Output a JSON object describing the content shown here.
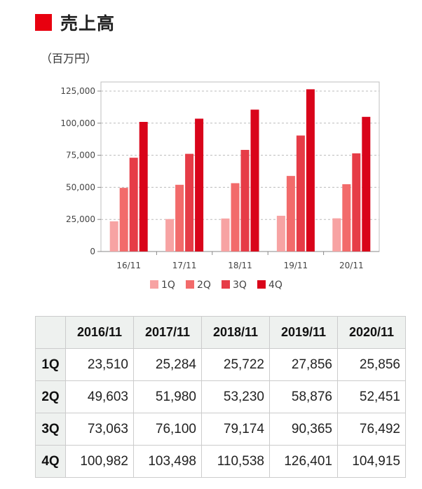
{
  "header": {
    "title": "売上高",
    "unit": "（百万円）",
    "accent_color": "#e8000f"
  },
  "chart_data": {
    "type": "bar",
    "categories": [
      "16/11",
      "17/11",
      "18/11",
      "19/11",
      "20/11"
    ],
    "series": [
      {
        "name": "1Q",
        "color": "#f7a3a3",
        "values": [
          23510,
          25284,
          25722,
          27856,
          25856
        ]
      },
      {
        "name": "2Q",
        "color": "#f26b6b",
        "values": [
          49603,
          51980,
          53230,
          58876,
          52451
        ]
      },
      {
        "name": "3Q",
        "color": "#e63c47",
        "values": [
          73063,
          76100,
          79174,
          90365,
          76492
        ]
      },
      {
        "name": "4Q",
        "color": "#d9041a",
        "values": [
          100982,
          103498,
          110538,
          126401,
          104915
        ]
      }
    ],
    "yticks": [
      "0",
      "25,000",
      "50,000",
      "75,000",
      "100,000",
      "125,000"
    ],
    "ylim": [
      0,
      125000
    ],
    "grid": true,
    "legend": "bottom"
  },
  "table": {
    "headers": [
      "2016/11",
      "2017/11",
      "2018/11",
      "2019/11",
      "2020/11"
    ],
    "rows": [
      {
        "label": "1Q",
        "cells": [
          "23,510",
          "25,284",
          "25,722",
          "27,856",
          "25,856"
        ]
      },
      {
        "label": "2Q",
        "cells": [
          "49,603",
          "51,980",
          "53,230",
          "58,876",
          "52,451"
        ]
      },
      {
        "label": "3Q",
        "cells": [
          "73,063",
          "76,100",
          "79,174",
          "90,365",
          "76,492"
        ]
      },
      {
        "label": "4Q",
        "cells": [
          "100,982",
          "103,498",
          "110,538",
          "126,401",
          "104,915"
        ]
      }
    ]
  }
}
